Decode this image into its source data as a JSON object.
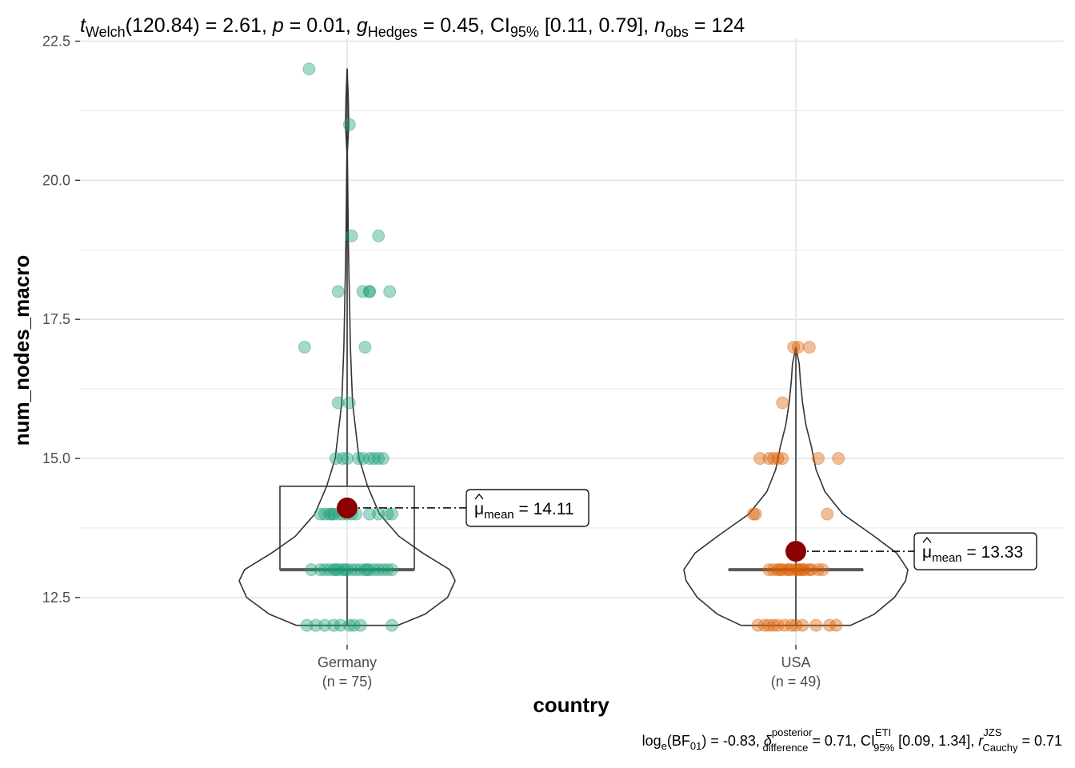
{
  "chart_data": {
    "type": "violin",
    "subtitle": {
      "t": "t",
      "t_sub": "Welch",
      "df": "(120.84)",
      "eq1": " = ",
      "tval": "2.61",
      "sep1": ", ",
      "p": "p",
      "eq2": " = ",
      "pval": "0.01",
      "sep2": ", ",
      "g": "g",
      "g_sub": "Hedges",
      "eq3": " = ",
      "gval": "0.45",
      "sep3": ", ",
      "ci": "CI",
      "ci_sub": "95%",
      "ci_val": " [0.11, 0.79], ",
      "n": "n",
      "n_sub": "obs",
      "eq4": " = ",
      "nval": "124"
    },
    "caption": {
      "log": "log",
      "log_sub": "e",
      "bf": "(BF",
      "bf_sub": "01",
      "bf_close": ")",
      "bf_eq": " = -0.83, ",
      "delta": "δ",
      "delta_sup": "posterior",
      "delta_sub": "difference",
      "delta_eq": " = 0.71, ",
      "ci": "CI",
      "ci_sup": "ETI",
      "ci_sub": "95%",
      "ci_val": " [0.09, 1.34], ",
      "r": "r",
      "r_sup": "JZS",
      "r_sub": "Cauchy",
      "r_eq": " = 0.71"
    },
    "xlabel": "country",
    "ylabel": "num_nodes_macro",
    "ylim": [
      11.65,
      22.55
    ],
    "yticks": [
      12.5,
      15.0,
      17.5,
      20.0,
      22.5
    ],
    "ytick_labels": [
      "12.5",
      "15.0",
      "17.5",
      "20.0",
      "22.5"
    ],
    "grid": true,
    "categories": [
      "Germany",
      "USA"
    ],
    "category_counts": [
      "(n = 75)",
      "(n = 49)"
    ],
    "colors": {
      "Germany": "#1B9E77",
      "USA": "#D95F02",
      "mean_point": "#8B0000"
    },
    "groups": [
      {
        "name": "Germany",
        "mean": 14.11,
        "mean_label_prefix": "μ",
        "mean_label_sub": "mean",
        "mean_label_eq": " = ",
        "mean_label_value": "14.11",
        "box": {
          "q1": 13.0,
          "median": 13.0,
          "q3": 14.5,
          "whisker_low": 12.0,
          "whisker_high": 22.0
        },
        "violin": [
          [
            12.0,
            0.47
          ],
          [
            12.2,
            0.72
          ],
          [
            12.5,
            0.93
          ],
          [
            12.8,
            1.0
          ],
          [
            13.0,
            0.95
          ],
          [
            13.3,
            0.7
          ],
          [
            13.6,
            0.48
          ],
          [
            14.0,
            0.3
          ],
          [
            14.5,
            0.19
          ],
          [
            15.0,
            0.11
          ],
          [
            15.5,
            0.08
          ],
          [
            16.0,
            0.05
          ],
          [
            16.5,
            0.04
          ],
          [
            17.0,
            0.03
          ],
          [
            17.5,
            0.025
          ],
          [
            18.0,
            0.02
          ],
          [
            18.5,
            0.015
          ],
          [
            19.0,
            0.01
          ],
          [
            20.0,
            0.005
          ],
          [
            20.5,
            0.002
          ],
          [
            21.0,
            0.015
          ],
          [
            21.5,
            0.01
          ],
          [
            22.0,
            0.0
          ]
        ],
        "points": [
          [
            -0.18,
            12.0
          ],
          [
            -0.14,
            12.0
          ],
          [
            -0.1,
            12.0
          ],
          [
            -0.06,
            12.0
          ],
          [
            -0.03,
            12.0
          ],
          [
            0.03,
            12.0
          ],
          [
            0.06,
            12.0
          ],
          [
            0.2,
            12.0
          ],
          [
            0.01,
            12.0
          ],
          [
            -0.1,
            13.0
          ],
          [
            -0.08,
            13.0
          ],
          [
            -0.06,
            13.0
          ],
          [
            -0.04,
            13.0
          ],
          [
            -0.02,
            13.0
          ],
          [
            0.0,
            13.0
          ],
          [
            0.02,
            13.0
          ],
          [
            0.04,
            13.0
          ],
          [
            0.06,
            13.0
          ],
          [
            0.08,
            13.0
          ],
          [
            0.1,
            13.0
          ],
          [
            0.12,
            13.0
          ],
          [
            0.14,
            13.0
          ],
          [
            0.16,
            13.0
          ],
          [
            0.18,
            13.0
          ],
          [
            0.2,
            13.0
          ],
          [
            -0.12,
            13.0
          ],
          [
            -0.16,
            13.0
          ],
          [
            -0.01,
            13.0
          ],
          [
            0.09,
            13.0
          ],
          [
            -0.05,
            13.0
          ],
          [
            -0.12,
            14.0
          ],
          [
            -0.1,
            14.0
          ],
          [
            -0.08,
            14.0
          ],
          [
            -0.06,
            14.0
          ],
          [
            -0.04,
            14.0
          ],
          [
            -0.02,
            14.0
          ],
          [
            0.0,
            14.0
          ],
          [
            0.02,
            14.0
          ],
          [
            0.04,
            14.0
          ],
          [
            0.1,
            14.0
          ],
          [
            0.14,
            14.0
          ],
          [
            0.18,
            14.0
          ],
          [
            0.2,
            14.0
          ],
          [
            -0.07,
            14.0
          ],
          [
            -0.05,
            15.0
          ],
          [
            -0.02,
            15.0
          ],
          [
            0.0,
            15.0
          ],
          [
            0.05,
            15.0
          ],
          [
            0.1,
            15.0
          ],
          [
            0.12,
            15.0
          ],
          [
            0.14,
            15.0
          ],
          [
            0.16,
            15.0
          ],
          [
            0.07,
            15.0
          ],
          [
            -0.04,
            16.0
          ],
          [
            0.01,
            16.0
          ],
          [
            -0.19,
            17.0
          ],
          [
            0.08,
            17.0
          ],
          [
            -0.04,
            18.0
          ],
          [
            0.07,
            18.0
          ],
          [
            0.1,
            18.0
          ],
          [
            0.19,
            18.0
          ],
          [
            0.1,
            18.0
          ],
          [
            0.02,
            19.0
          ],
          [
            0.14,
            19.0
          ],
          [
            0.01,
            21.0
          ],
          [
            -0.17,
            22.0
          ]
        ]
      },
      {
        "name": "USA",
        "mean": 13.33,
        "mean_label_prefix": "μ",
        "mean_label_sub": "mean",
        "mean_label_eq": " = ",
        "mean_label_value": "13.33",
        "box": {
          "q1": 13.0,
          "median": 13.0,
          "q3": 13.0,
          "whisker_low": 12.0,
          "whisker_high": 17.0
        },
        "violin": [
          [
            12.0,
            0.49
          ],
          [
            12.2,
            0.7
          ],
          [
            12.5,
            0.88
          ],
          [
            12.8,
            0.98
          ],
          [
            13.0,
            1.0
          ],
          [
            13.3,
            0.9
          ],
          [
            13.6,
            0.7
          ],
          [
            14.0,
            0.42
          ],
          [
            14.4,
            0.26
          ],
          [
            14.8,
            0.18
          ],
          [
            15.2,
            0.14
          ],
          [
            15.6,
            0.09
          ],
          [
            16.0,
            0.06
          ],
          [
            16.4,
            0.04
          ],
          [
            16.7,
            0.03
          ],
          [
            17.0,
            0.0
          ]
        ],
        "points": [
          [
            -0.17,
            12.0
          ],
          [
            -0.14,
            12.0
          ],
          [
            -0.12,
            12.0
          ],
          [
            -0.1,
            12.0
          ],
          [
            -0.08,
            12.0
          ],
          [
            -0.05,
            12.0
          ],
          [
            -0.02,
            12.0
          ],
          [
            0.0,
            12.0
          ],
          [
            0.03,
            12.0
          ],
          [
            0.09,
            12.0
          ],
          [
            0.15,
            12.0
          ],
          [
            0.18,
            12.0
          ],
          [
            -0.12,
            13.0
          ],
          [
            -0.1,
            13.0
          ],
          [
            -0.08,
            13.0
          ],
          [
            -0.06,
            13.0
          ],
          [
            -0.04,
            13.0
          ],
          [
            -0.02,
            13.0
          ],
          [
            0.0,
            13.0
          ],
          [
            0.02,
            13.0
          ],
          [
            0.04,
            13.0
          ],
          [
            0.06,
            13.0
          ],
          [
            0.1,
            13.0
          ],
          [
            0.12,
            13.0
          ],
          [
            -0.03,
            13.0
          ],
          [
            0.03,
            13.0
          ],
          [
            -0.07,
            13.0
          ],
          [
            0.07,
            13.0
          ],
          [
            0.01,
            13.0
          ],
          [
            -0.18,
            14.0
          ],
          [
            -0.19,
            14.0
          ],
          [
            0.14,
            14.0
          ],
          [
            -0.16,
            15.0
          ],
          [
            -0.12,
            15.0
          ],
          [
            -0.1,
            15.0
          ],
          [
            -0.08,
            15.0
          ],
          [
            -0.06,
            15.0
          ],
          [
            0.1,
            15.0
          ],
          [
            0.19,
            15.0
          ],
          [
            -0.06,
            16.0
          ],
          [
            -0.01,
            17.0
          ],
          [
            0.01,
            17.0
          ],
          [
            0.06,
            17.0
          ]
        ]
      }
    ]
  }
}
